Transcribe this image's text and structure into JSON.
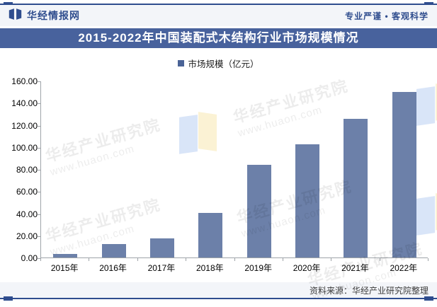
{
  "header": {
    "site_name": "华经情报网",
    "slogan": "专业严谨 • 客观科学"
  },
  "title": "2015-2022年中国装配式木结构行业市场规模情况",
  "legend": {
    "label": "市场规模（亿元）"
  },
  "chart_data": {
    "type": "bar",
    "title": "2015-2022年中国装配式木结构行业市场规模情况",
    "series_name": "市场规模（亿元）",
    "categories": [
      "2015年",
      "2016年",
      "2017年",
      "2018年",
      "2019年",
      "2020年",
      "2021年",
      "2022年"
    ],
    "values": [
      3.2,
      12.4,
      17.4,
      40.2,
      83.6,
      102.7,
      125.4,
      150.0
    ],
    "ylim": [
      0,
      160
    ],
    "ytick_step": 20,
    "ytick_labels": [
      "160.00",
      "140.00",
      "120.00",
      "100.00",
      "80.00",
      "60.00",
      "40.00",
      "20.00",
      "0.00"
    ],
    "xlabel": "",
    "ylabel": "",
    "grid": false,
    "legend_position": "top",
    "bar_color": "#6C80A9"
  },
  "footer": {
    "source": "资料来源：华经产业研究院整理"
  },
  "watermark": {
    "line1": "华经产业研究院",
    "line2": "www.huaon.com"
  },
  "colors": {
    "navy": "#2F4D8E",
    "banner": "#48629D",
    "bar": "#6C80A9",
    "band": "#F3F5F9",
    "legend_swatch": "#4A6396",
    "axis": "#9FA4A9"
  }
}
